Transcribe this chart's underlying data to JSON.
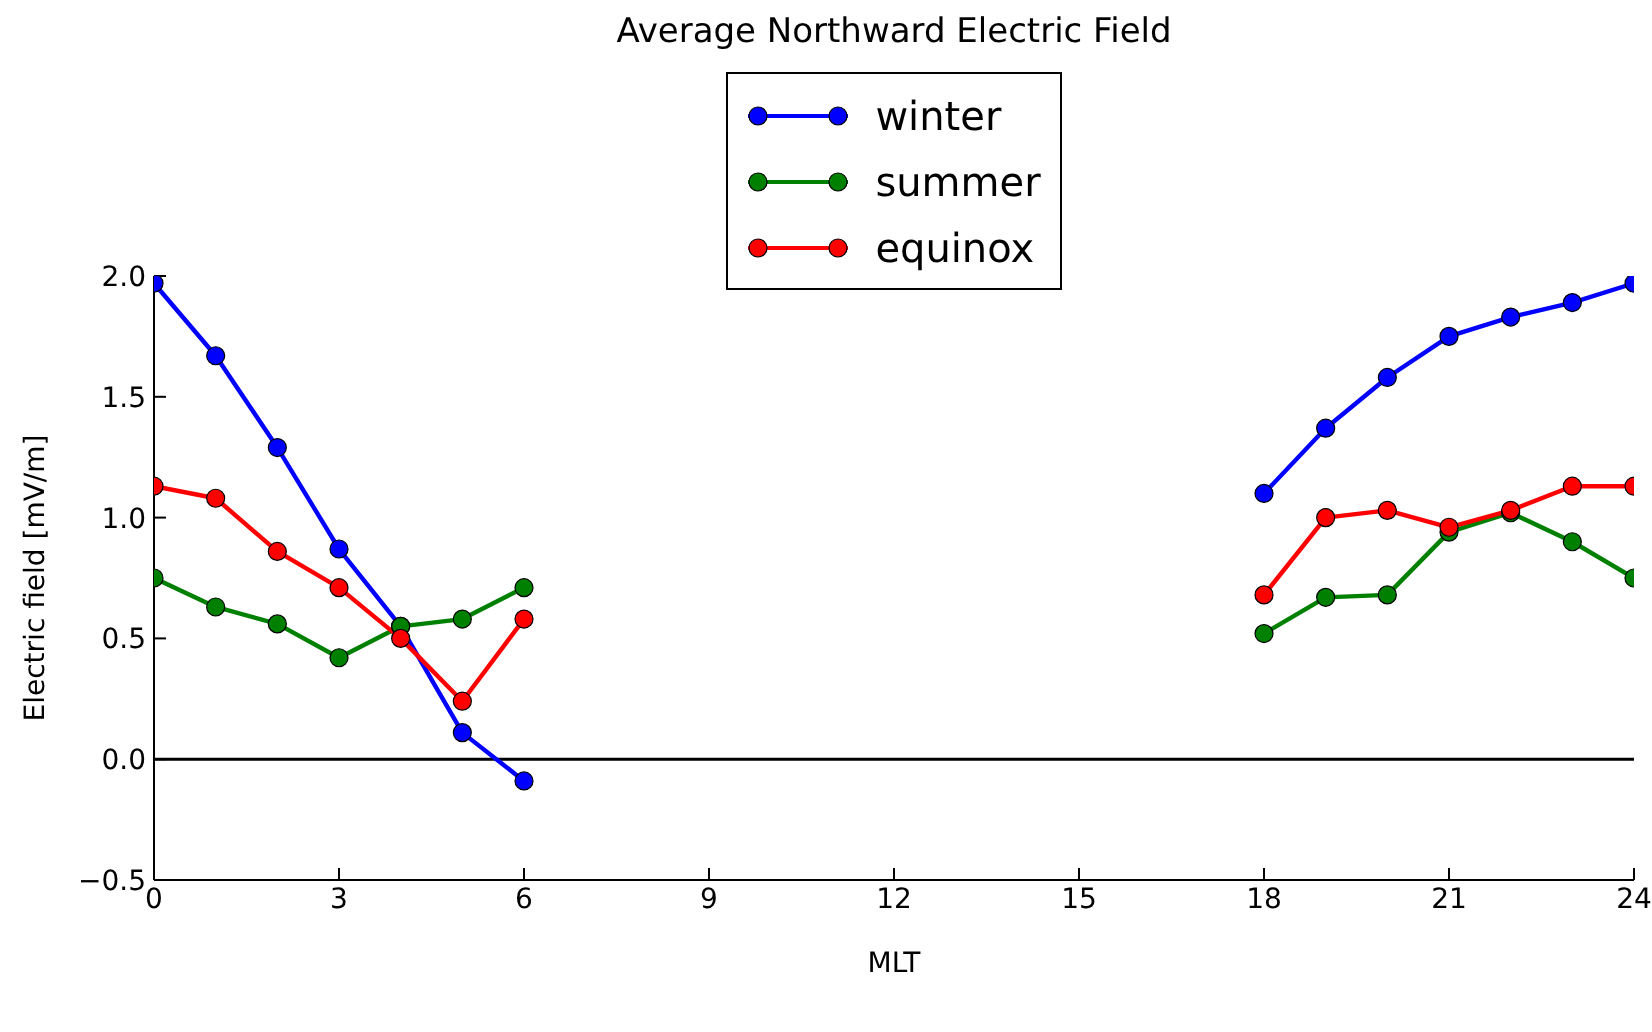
{
  "chart_data": {
    "type": "line",
    "title": "Average Northward Electric Field",
    "xlabel": "MLT",
    "ylabel": "Electric field [mV/m]",
    "x": [
      0,
      1,
      2,
      3,
      4,
      5,
      6,
      7,
      8,
      9,
      10,
      11,
      12,
      13,
      14,
      15,
      16,
      17,
      18,
      19,
      20,
      21,
      22,
      23,
      24
    ],
    "series": [
      {
        "name": "winter",
        "color": "#0000ff",
        "values": [
          1.97,
          1.67,
          1.29,
          0.87,
          0.55,
          0.11,
          -0.09,
          null,
          null,
          null,
          null,
          null,
          null,
          null,
          null,
          null,
          null,
          null,
          1.1,
          1.37,
          1.58,
          1.75,
          1.83,
          1.89,
          1.97
        ]
      },
      {
        "name": "summer",
        "color": "#008000",
        "values": [
          0.75,
          0.63,
          0.56,
          0.42,
          0.55,
          0.58,
          0.71,
          null,
          null,
          null,
          null,
          null,
          null,
          null,
          null,
          null,
          null,
          null,
          0.52,
          0.67,
          0.68,
          0.94,
          1.02,
          0.9,
          0.75
        ]
      },
      {
        "name": "equinox",
        "color": "#ff0000",
        "values": [
          1.13,
          1.08,
          0.86,
          0.71,
          0.5,
          0.24,
          0.58,
          null,
          null,
          null,
          null,
          null,
          null,
          null,
          null,
          null,
          null,
          null,
          0.68,
          1.0,
          1.03,
          0.96,
          1.03,
          1.13,
          1.13
        ]
      }
    ],
    "xlim": [
      0,
      24
    ],
    "xticks": [
      0,
      3,
      6,
      9,
      12,
      15,
      18,
      21,
      24
    ],
    "ylim": [
      -0.5,
      2.0
    ],
    "yticks": [
      {
        "value": -0.5,
        "label": "−0.5"
      },
      {
        "value": 0,
        "label": "0.0"
      },
      {
        "value": 0.5,
        "label": "0.5"
      },
      {
        "value": 1,
        "label": "1.0"
      },
      {
        "value": 1.5,
        "label": "1.5"
      },
      {
        "value": 2,
        "label": "2.0"
      }
    ],
    "ref_lines": [
      {
        "axis": "y",
        "value": 0,
        "color": "#000000"
      }
    ],
    "grid": false,
    "legend": "top",
    "marker": "circle",
    "line_style": "solid"
  }
}
